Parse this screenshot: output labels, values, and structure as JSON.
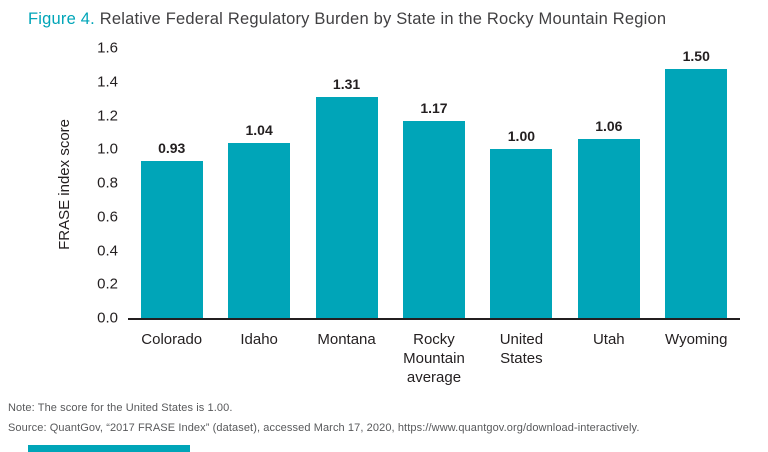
{
  "figure": {
    "label": "Figure 4.",
    "title": " Relative Federal Regulatory Burden by State in the Rocky Mountain Region"
  },
  "chart_data": {
    "type": "bar",
    "title": "Relative Federal Regulatory Burden by State in the Rocky Mountain Region",
    "categories": [
      "Colorado",
      "Idaho",
      "Montana",
      "Rocky Mountain average",
      "United States",
      "Utah",
      "Wyoming"
    ],
    "category_lines": [
      [
        "Colorado"
      ],
      [
        "Idaho"
      ],
      [
        "Montana"
      ],
      [
        "Rocky",
        "Mountain",
        "average"
      ],
      [
        "United",
        "States"
      ],
      [
        "Utah"
      ],
      [
        "Wyoming"
      ]
    ],
    "values": [
      0.93,
      1.04,
      1.31,
      1.17,
      1.0,
      1.06,
      1.5
    ],
    "value_labels": [
      "0.93",
      "1.04",
      "1.31",
      "1.17",
      "1.00",
      "1.06",
      "1.50"
    ],
    "xlabel": "",
    "ylabel": "FRASE index score",
    "ylim": [
      0,
      1.6
    ],
    "yticks": [
      0.0,
      0.2,
      0.4,
      0.6,
      0.8,
      1.0,
      1.2,
      1.4,
      1.6
    ],
    "ytick_labels": [
      "0.0",
      "0.2",
      "0.4",
      "0.6",
      "0.8",
      "1.0",
      "1.2",
      "1.4",
      "1.6"
    ],
    "bar_color": "#00a5b8",
    "grid": false,
    "legend": "none"
  },
  "notes": {
    "note": "Note: The score for the United States is 1.00.",
    "source": "Source: QuantGov, “2017 FRASE Index” (dataset), accessed March 17, 2020, https://www.quantgov.org/download-interactively."
  },
  "colors": {
    "accent": "#00a5b8",
    "text_dark": "#231f20",
    "text_note": "#58595b"
  }
}
